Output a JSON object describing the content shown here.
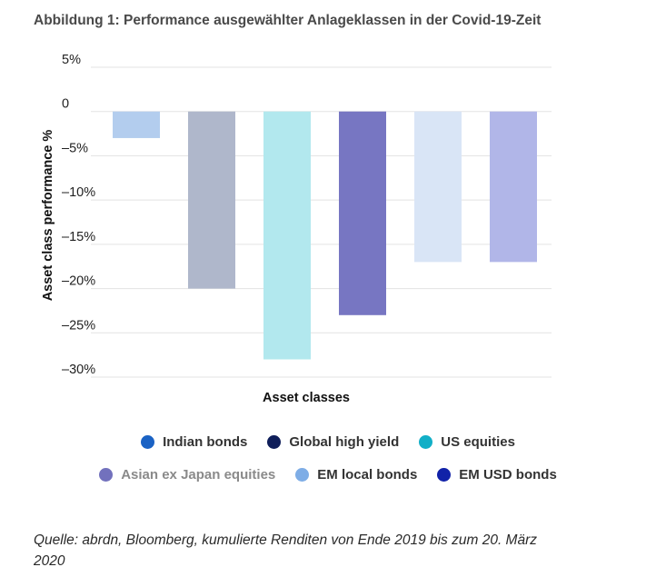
{
  "header": {
    "title": "Abbildung 1: Performance ausgewählter Anlageklassen in der Covid-19-Zeit"
  },
  "chart_data": {
    "type": "bar",
    "title": "Abbildung 1: Performance ausgewählter Anlageklassen in der Covid-19-Zeit",
    "xlabel": "Asset classes",
    "ylabel": "Asset class performance %",
    "categories": [
      "Indian bonds",
      "Global high yield",
      "US equities",
      "Asian ex Japan equities",
      "EM local bonds",
      "EM USD bonds"
    ],
    "values": [
      -3,
      -20,
      -28,
      -23,
      -17,
      -17
    ],
    "bar_colors": [
      "#b3cdee",
      "#afb7cb",
      "#b2e8ee",
      "#7776c2",
      "#d9e5f6",
      "#b1b6e8"
    ],
    "ylim": [
      -30,
      5
    ],
    "yticks": [
      5,
      0,
      -5,
      -10,
      -15,
      -20,
      -25,
      -30
    ],
    "ytick_labels": [
      "5%",
      "0",
      "–5%",
      "–10%",
      "–15%",
      "–20%",
      "–25%",
      "–30%"
    ],
    "grid": true,
    "legend_position": "bottom",
    "legend": [
      {
        "label": "Indian bonds",
        "color": "#1a62c4"
      },
      {
        "label": "Global high yield",
        "color": "#0f1e5a"
      },
      {
        "label": "US equities",
        "color": "#12afc7"
      },
      {
        "label": "Asian ex Japan equities",
        "color": "#7271bd"
      },
      {
        "label": "EM local bonds",
        "color": "#7eade6"
      },
      {
        "label": "EM USD bonds",
        "color": "#1122a8"
      }
    ]
  },
  "source": "Quelle: abrdn, Bloomberg, kumulierte Renditen von Ende 2019 bis zum 20. März 2020"
}
